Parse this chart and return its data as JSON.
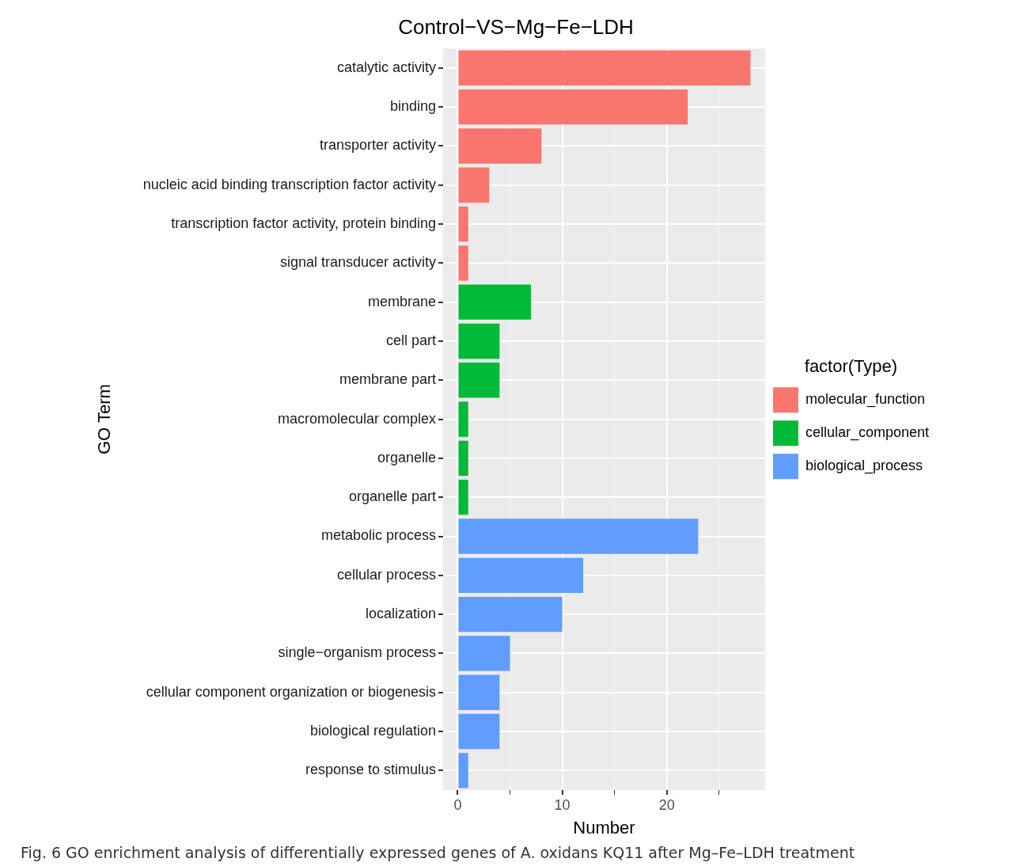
{
  "chart_data": {
    "type": "bar",
    "orientation": "horizontal",
    "title": "Control−VS−Mg−Fe−LDH",
    "xlabel": "Number",
    "ylabel": "GO Term",
    "legend_title": "factor(Type)",
    "categories": [
      "catalytic activity",
      "binding",
      "transporter activity",
      "nucleic acid binding transcription factor activity",
      "transcription factor activity, protein binding",
      "signal transducer activity",
      "membrane",
      "cell part",
      "membrane part",
      "macromolecular complex",
      "organelle",
      "organelle part",
      "metabolic process",
      "cellular process",
      "localization",
      "single−organism process",
      "cellular component organization or biogenesis",
      "biological regulation",
      "response to stimulus"
    ],
    "series": [
      {
        "name": "molecular_function",
        "color": "#f8766d",
        "values": [
          28,
          22,
          8,
          3,
          1,
          1,
          null,
          null,
          null,
          null,
          null,
          null,
          null,
          null,
          null,
          null,
          null,
          null,
          null
        ]
      },
      {
        "name": "cellular_component",
        "color": "#00ba38",
        "values": [
          null,
          null,
          null,
          null,
          null,
          null,
          7,
          4,
          4,
          1,
          1,
          1,
          null,
          null,
          null,
          null,
          null,
          null,
          null
        ]
      },
      {
        "name": "biological_process",
        "color": "#619cff",
        "values": [
          null,
          null,
          null,
          null,
          null,
          null,
          null,
          null,
          null,
          null,
          null,
          null,
          23,
          12,
          10,
          5,
          4,
          4,
          1
        ]
      }
    ],
    "xlim": [
      -1.4,
      29.4
    ],
    "xticks": [
      0,
      {
        "value": 5,
        "label": null
      },
      10,
      {
        "value": 15,
        "label": null
      },
      20,
      {
        "value": 25,
        "label": null
      }
    ],
    "grid": true,
    "legend": "right",
    "annotations": [
      "Fig. 6  GO enrichment analysis of differentially expressed genes of A. oxidans KQ11 after Mg–Fe–LDH treatment"
    ]
  }
}
